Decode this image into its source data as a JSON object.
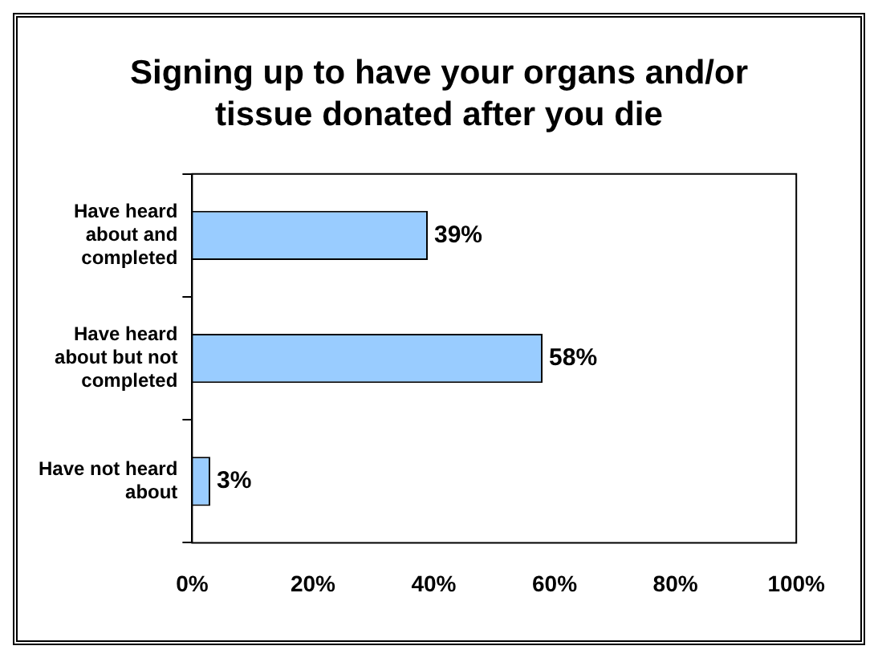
{
  "chart_data": {
    "type": "bar",
    "orientation": "horizontal",
    "title": "Signing up to have your organs and/or tissue donated after you die",
    "categories": [
      "Have heard about and completed",
      "Have heard about but not completed",
      "Have not heard about"
    ],
    "values": [
      39,
      58,
      3
    ],
    "value_labels": [
      "39%",
      "58%",
      "3%"
    ],
    "color": "#99ccff",
    "xlim": [
      0,
      100
    ],
    "xticks": [
      {
        "value": 0,
        "label": "0%"
      },
      {
        "value": 20,
        "label": "20%"
      },
      {
        "value": 40,
        "label": "40%"
      },
      {
        "value": 60,
        "label": "60%"
      },
      {
        "value": 80,
        "label": "80%"
      },
      {
        "value": 100,
        "label": "100%"
      }
    ],
    "grid": false,
    "legend": false
  }
}
